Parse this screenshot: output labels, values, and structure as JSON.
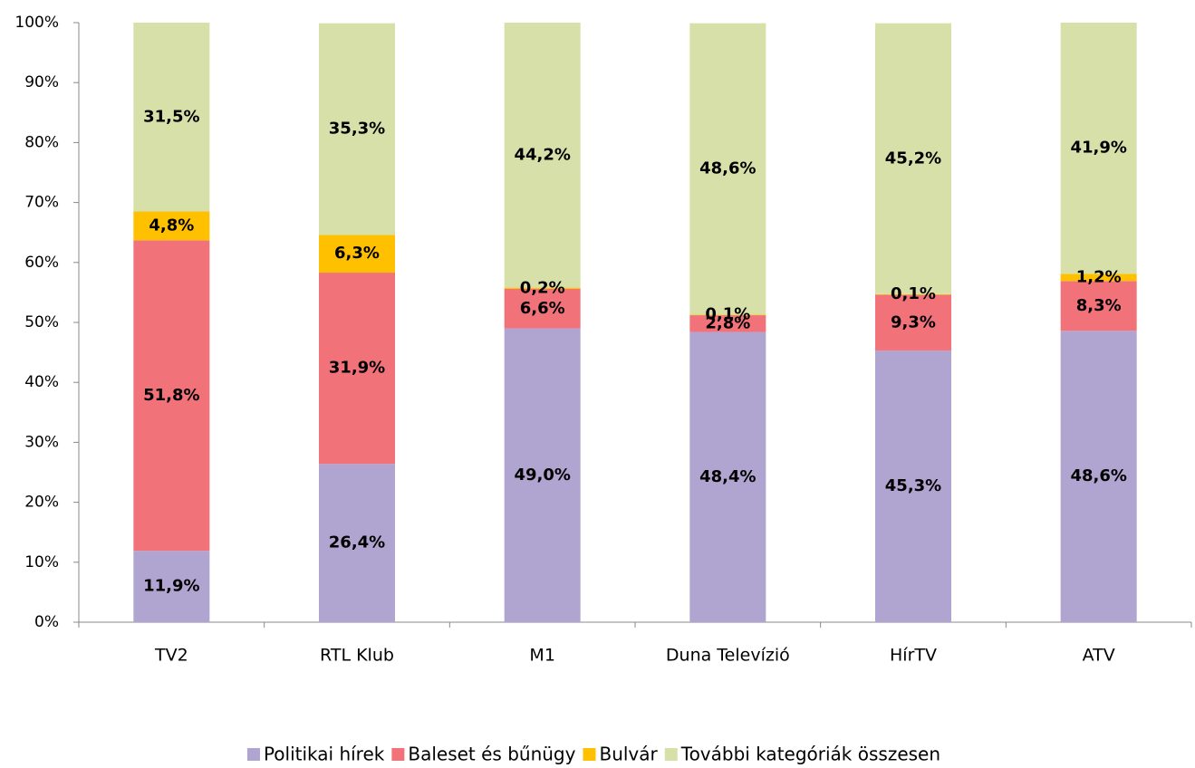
{
  "chart_data": {
    "type": "stacked_bar",
    "categories": [
      "TV2",
      "RTL Klub",
      "M1",
      "Duna Televízió",
      "HírTV",
      "ATV"
    ],
    "series": [
      {
        "name": "Politikai hírek",
        "color": "#b0a4d0",
        "values": [
          11.9,
          26.4,
          49.0,
          48.4,
          45.3,
          48.6
        ],
        "value_labels": [
          "11,9%",
          "26,4%",
          "49,0%",
          "48,4%",
          "45,3%",
          "48,6%"
        ]
      },
      {
        "name": "Baleset és bűnügy",
        "color": "#f2727a",
        "values": [
          51.8,
          31.9,
          6.6,
          2.8,
          9.3,
          8.3
        ],
        "value_labels": [
          "51,8%",
          "31,9%",
          "6,6%",
          "2,8%",
          "9,3%",
          "8,3%"
        ]
      },
      {
        "name": "Bulvár",
        "color": "#ffc000",
        "values": [
          4.8,
          6.3,
          0.2,
          0.1,
          0.1,
          1.2
        ],
        "value_labels": [
          "4,8%",
          "6,3%",
          "0,2%",
          "0,1%",
          "0,1%",
          "1,2%"
        ]
      },
      {
        "name": "További kategóriák összesen",
        "color": "#d7e0a8",
        "values": [
          31.5,
          35.3,
          44.2,
          48.6,
          45.2,
          41.9
        ],
        "value_labels": [
          "31,5%",
          "35,3%",
          "44,2%",
          "48,6%",
          "45,2%",
          "41,9%"
        ]
      }
    ],
    "ylim": [
      0,
      100
    ],
    "yticks": [
      {
        "value": 0,
        "label": "0%"
      },
      {
        "value": 10,
        "label": "10%"
      },
      {
        "value": 20,
        "label": "20%"
      },
      {
        "value": 30,
        "label": "30%"
      },
      {
        "value": 40,
        "label": "40%"
      },
      {
        "value": 50,
        "label": "50%"
      },
      {
        "value": 60,
        "label": "60%"
      },
      {
        "value": 70,
        "label": "70%"
      },
      {
        "value": 80,
        "label": "80%"
      },
      {
        "value": 90,
        "label": "90%"
      },
      {
        "value": 100,
        "label": "100%"
      }
    ],
    "grid": false,
    "legend": "bottom"
  }
}
